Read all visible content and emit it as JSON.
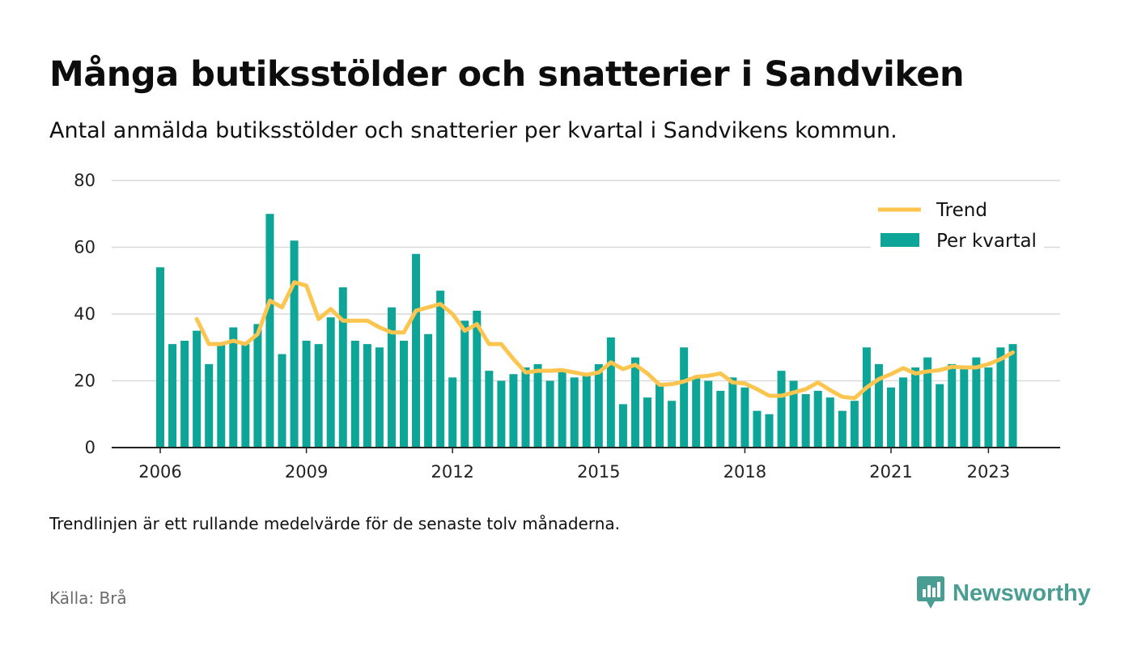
{
  "title": "Många butiksstölder och snatterier i Sandviken",
  "subtitle": "Antal anmälda butiksstölder och snatterier per kvartal i Sandvikens kommun.",
  "note": "Trendlinjen är ett rullande medelvärde för de senaste tolv månaderna.",
  "source": "Källa: Brå",
  "brand": {
    "name": "Newsworthy",
    "icon": "newsworthy-logo-icon",
    "color": "#4a9d93"
  },
  "colors": {
    "bar": "#0ca597",
    "trend": "#fbc54f",
    "grid": "#d9d9d9",
    "axis": "#222222"
  },
  "chart_data": {
    "type": "bar",
    "x_start": "2006 Q1",
    "xticks": [
      "2006",
      "2009",
      "2012",
      "2015",
      "2018",
      "2021",
      "2023"
    ],
    "yticks": [
      0,
      20,
      40,
      60,
      80
    ],
    "ylim": [
      0,
      80
    ],
    "grid": true,
    "legend_position": "top-right",
    "series": [
      {
        "name": "Per kvartal",
        "kind": "bar",
        "values": [
          54,
          31,
          32,
          35,
          25,
          31,
          36,
          31,
          37,
          70,
          28,
          62,
          32,
          31,
          39,
          48,
          32,
          31,
          30,
          42,
          32,
          58,
          34,
          47,
          21,
          38,
          41,
          23,
          20,
          22,
          24,
          25,
          20,
          23,
          21,
          22,
          25,
          33,
          13,
          27,
          15,
          19,
          14,
          30,
          21,
          20,
          17,
          21,
          18,
          11,
          10,
          23,
          20,
          16,
          17,
          15,
          11,
          14,
          30,
          25,
          18,
          21,
          24,
          27,
          19,
          25,
          24,
          27,
          24,
          30,
          31
        ]
      },
      {
        "name": "Trend",
        "kind": "line",
        "start_index": 3,
        "values": [
          38.5,
          31,
          31,
          32,
          31,
          34,
          44,
          42,
          49.5,
          48.5,
          38.5,
          41.5,
          38,
          38,
          38,
          36,
          34.5,
          34.5,
          41,
          42,
          43,
          40,
          35,
          37,
          31,
          31,
          26.5,
          22.5,
          23,
          23,
          23.2,
          22.5,
          21.8,
          22.5,
          25.5,
          23.5,
          24.8,
          22.2,
          18.8,
          19,
          19.8,
          21.2,
          21.5,
          22.2,
          19.5,
          19.2,
          17.5,
          15.5,
          15.5,
          16.5,
          17.5,
          19.5,
          17.2,
          15.2,
          14.8,
          18,
          20.5,
          22,
          23.8,
          22.2,
          22.8,
          23.2,
          24.2,
          24,
          24,
          25,
          26.5,
          28.5
        ]
      }
    ]
  }
}
